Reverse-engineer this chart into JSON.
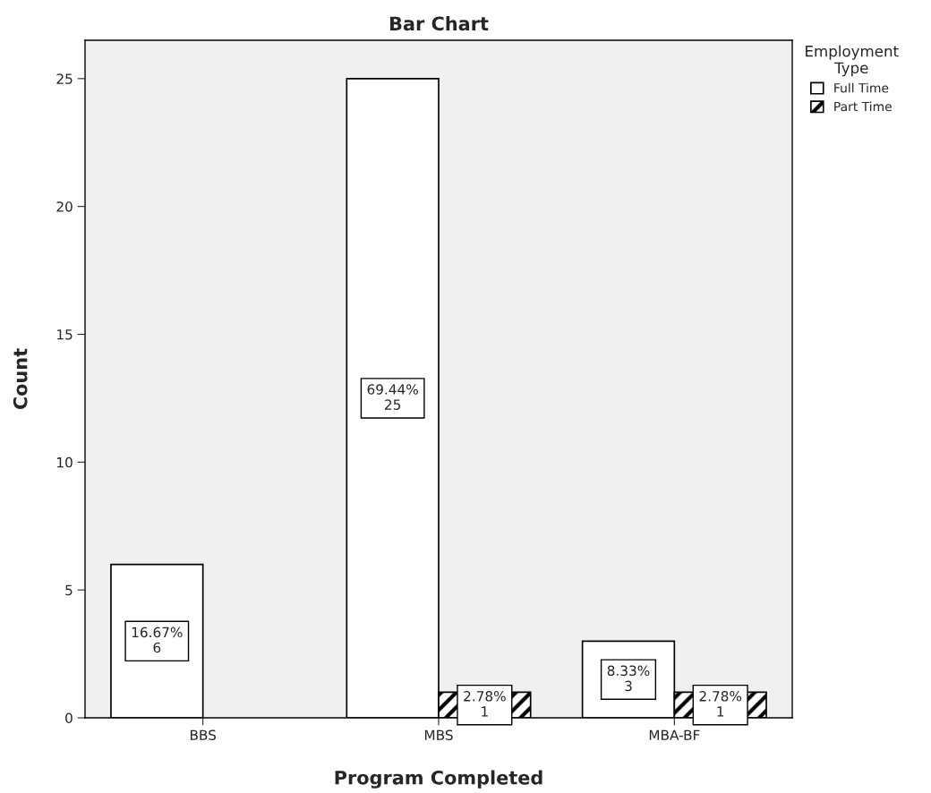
{
  "chart_data": {
    "type": "bar",
    "title": "Bar Chart",
    "xlabel": "Program Completed",
    "ylabel": "Count",
    "legend_title": "Employment\nType",
    "categories": [
      "BBS",
      "MBS",
      "MBA-BF"
    ],
    "series": [
      {
        "name": "Full Time",
        "color": "#ffffff",
        "values": [
          6,
          25,
          3
        ],
        "value_labels": [
          "16.67%\n6",
          "69.44%\n25",
          "8.33%\n3"
        ]
      },
      {
        "name": "Part Time",
        "color": "#000000",
        "values": [
          null,
          1,
          1
        ],
        "value_labels": [
          null,
          "2.78%\n1",
          "2.78%\n1"
        ]
      }
    ],
    "ylim": [
      0,
      26.5
    ],
    "yticks": [
      0,
      5,
      10,
      15,
      20,
      25
    ],
    "grid": false,
    "legend": "top right"
  }
}
